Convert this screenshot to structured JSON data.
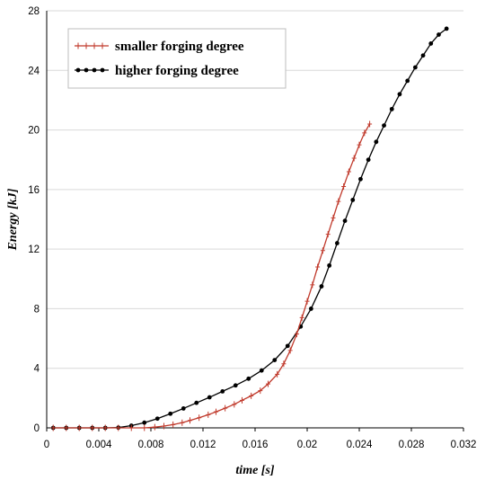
{
  "chart_data": {
    "type": "line",
    "xlabel": "time [s]",
    "ylabel": "Energy [kJ]",
    "xlim": [
      0,
      0.032
    ],
    "ylim": [
      0,
      28
    ],
    "x_ticks": [
      "0",
      "0.004",
      "0.008",
      "0.012",
      "0.016",
      "0.02",
      "0.024",
      "0.028",
      "0.032"
    ],
    "y_ticks": [
      "0",
      "4",
      "8",
      "12",
      "16",
      "20",
      "24",
      "28"
    ],
    "grid": "horizontal",
    "legend_position": "top-left",
    "series": [
      {
        "name": "smaller forging degree",
        "color": "#c0392b",
        "marker": "plus",
        "points": [
          [
            0.0005,
            0
          ],
          [
            0.0015,
            0
          ],
          [
            0.0025,
            0
          ],
          [
            0.0035,
            0
          ],
          [
            0.0045,
            0
          ],
          [
            0.0055,
            0
          ],
          [
            0.0065,
            0
          ],
          [
            0.0075,
            0
          ],
          [
            0.0083,
            0.05
          ],
          [
            0.009,
            0.12
          ],
          [
            0.0097,
            0.22
          ],
          [
            0.0104,
            0.35
          ],
          [
            0.011,
            0.5
          ],
          [
            0.0117,
            0.68
          ],
          [
            0.0124,
            0.88
          ],
          [
            0.013,
            1.08
          ],
          [
            0.0137,
            1.32
          ],
          [
            0.0144,
            1.58
          ],
          [
            0.015,
            1.85
          ],
          [
            0.0157,
            2.15
          ],
          [
            0.0164,
            2.5
          ],
          [
            0.017,
            2.95
          ],
          [
            0.0177,
            3.6
          ],
          [
            0.0182,
            4.3
          ],
          [
            0.0187,
            5.2
          ],
          [
            0.0192,
            6.3
          ],
          [
            0.0196,
            7.4
          ],
          [
            0.02,
            8.5
          ],
          [
            0.0204,
            9.6
          ],
          [
            0.0208,
            10.8
          ],
          [
            0.0212,
            11.9
          ],
          [
            0.0216,
            13.0
          ],
          [
            0.022,
            14.1
          ],
          [
            0.0224,
            15.2
          ],
          [
            0.0228,
            16.2
          ],
          [
            0.0232,
            17.2
          ],
          [
            0.0236,
            18.1
          ],
          [
            0.024,
            19.0
          ],
          [
            0.0244,
            19.8
          ],
          [
            0.0248,
            20.4
          ]
        ]
      },
      {
        "name": "higher forging degree",
        "color": "#000000",
        "marker": "circle",
        "points": [
          [
            0.0005,
            0
          ],
          [
            0.0015,
            0
          ],
          [
            0.0025,
            0
          ],
          [
            0.0035,
            0
          ],
          [
            0.0045,
            0
          ],
          [
            0.0055,
            0.02
          ],
          [
            0.0065,
            0.15
          ],
          [
            0.0075,
            0.35
          ],
          [
            0.0085,
            0.62
          ],
          [
            0.0095,
            0.95
          ],
          [
            0.0105,
            1.3
          ],
          [
            0.0115,
            1.68
          ],
          [
            0.0125,
            2.05
          ],
          [
            0.0135,
            2.45
          ],
          [
            0.0145,
            2.85
          ],
          [
            0.0155,
            3.3
          ],
          [
            0.0165,
            3.85
          ],
          [
            0.0175,
            4.55
          ],
          [
            0.0185,
            5.5
          ],
          [
            0.0195,
            6.8
          ],
          [
            0.0203,
            8.0
          ],
          [
            0.0211,
            9.5
          ],
          [
            0.0217,
            10.9
          ],
          [
            0.0223,
            12.4
          ],
          [
            0.0229,
            13.9
          ],
          [
            0.0235,
            15.3
          ],
          [
            0.0241,
            16.7
          ],
          [
            0.0247,
            18.0
          ],
          [
            0.0253,
            19.2
          ],
          [
            0.0259,
            20.3
          ],
          [
            0.0265,
            21.4
          ],
          [
            0.0271,
            22.4
          ],
          [
            0.0277,
            23.3
          ],
          [
            0.0283,
            24.2
          ],
          [
            0.0289,
            25.0
          ],
          [
            0.0295,
            25.8
          ],
          [
            0.0301,
            26.4
          ],
          [
            0.0307,
            26.8
          ]
        ]
      }
    ]
  }
}
